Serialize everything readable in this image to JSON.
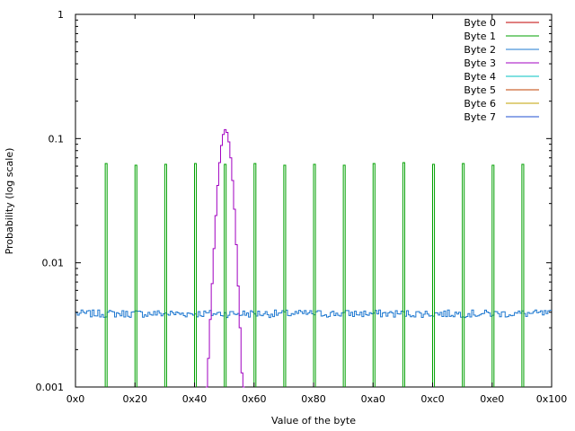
{
  "chart_data": {
    "type": "line",
    "title": "",
    "xlabel": "Value of the byte",
    "ylabel": "Probability (log scale)",
    "xlim": [
      0,
      256
    ],
    "ylim": [
      0.001,
      1
    ],
    "yscale": "log",
    "grid": false,
    "legend_position": "top-right",
    "x_ticks": [
      {
        "value": 0,
        "label": "0x0"
      },
      {
        "value": 32,
        "label": "0x20"
      },
      {
        "value": 64,
        "label": "0x40"
      },
      {
        "value": 96,
        "label": "0x60"
      },
      {
        "value": 128,
        "label": "0x80"
      },
      {
        "value": 160,
        "label": "0xa0"
      },
      {
        "value": 192,
        "label": "0xc0"
      },
      {
        "value": 224,
        "label": "0xe0"
      },
      {
        "value": 256,
        "label": "0x100"
      }
    ],
    "y_ticks": [
      {
        "value": 0.001,
        "label": "0.001"
      },
      {
        "value": 0.01,
        "label": "0.01"
      },
      {
        "value": 0.1,
        "label": "0.1"
      },
      {
        "value": 1,
        "label": "1"
      }
    ],
    "series": [
      {
        "name": "Byte 0",
        "color": "#c00000",
        "points": []
      },
      {
        "name": "Byte 1",
        "color": "#00a000",
        "points": [
          [
            16,
            0.063
          ],
          [
            32,
            0.061
          ],
          [
            48,
            0.062
          ],
          [
            64,
            0.063
          ],
          [
            80,
            0.062
          ],
          [
            96,
            0.063
          ],
          [
            112,
            0.061
          ],
          [
            128,
            0.062
          ],
          [
            144,
            0.061
          ],
          [
            160,
            0.063
          ],
          [
            176,
            0.064
          ],
          [
            192,
            0.062
          ],
          [
            208,
            0.063
          ],
          [
            224,
            0.061
          ],
          [
            240,
            0.062
          ]
        ]
      },
      {
        "name": "Byte 2",
        "color": "#1e78d0",
        "baseline": 0.0039,
        "points": []
      },
      {
        "name": "Byte 3",
        "color": "#a000c0",
        "points": [
          [
            70,
            0.001
          ],
          [
            71,
            0.0017
          ],
          [
            72,
            0.0035
          ],
          [
            73,
            0.0068
          ],
          [
            74,
            0.013
          ],
          [
            75,
            0.024
          ],
          [
            76,
            0.042
          ],
          [
            77,
            0.064
          ],
          [
            78,
            0.088
          ],
          [
            79,
            0.108
          ],
          [
            80,
            0.118
          ],
          [
            81,
            0.112
          ],
          [
            82,
            0.094
          ],
          [
            83,
            0.07
          ],
          [
            84,
            0.046
          ],
          [
            85,
            0.027
          ],
          [
            86,
            0.014
          ],
          [
            87,
            0.0065
          ],
          [
            88,
            0.003
          ],
          [
            89,
            0.0013
          ],
          [
            90,
            0.001
          ]
        ]
      },
      {
        "name": "Byte 4",
        "color": "#00c0c0",
        "points": []
      },
      {
        "name": "Byte 5",
        "color": "#c04000",
        "points": []
      },
      {
        "name": "Byte 6",
        "color": "#c0a000",
        "points": []
      },
      {
        "name": "Byte 7",
        "color": "#1f4fd0",
        "points": []
      }
    ]
  }
}
